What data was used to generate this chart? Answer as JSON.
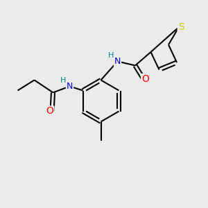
{
  "background_color": "#ebebeb",
  "atom_colors": {
    "C": "#000000",
    "N": "#0000cc",
    "O": "#ff0000",
    "S": "#cccc00",
    "H": "#008080"
  },
  "bond_color": "#000000",
  "bond_width": 1.5,
  "font_size_atom": 9,
  "fig_size": [
    3.0,
    3.0
  ],
  "dpi": 100,
  "xlim": [
    0,
    10
  ],
  "ylim": [
    0,
    10
  ]
}
